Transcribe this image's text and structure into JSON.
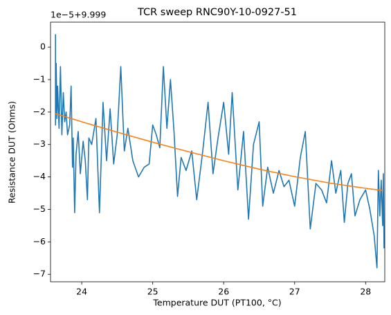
{
  "chart_data": {
    "type": "line",
    "title": "TCR sweep RNC90Y-10-0927-51",
    "x_label": "Temperature DUT (PT100, °C)",
    "y_label": "Resistance DUT (Ohms)",
    "y_offset_label": "1e−5+9.999",
    "xlim": [
      23.56,
      28.27
    ],
    "ylim": [
      -7.23,
      0.77
    ],
    "xticks": [
      24,
      25,
      26,
      27,
      28
    ],
    "yticks": [
      0,
      {
        "value": -1,
        "label": "−1"
      },
      {
        "value": -2,
        "label": "−2"
      },
      {
        "value": -3,
        "label": "−3"
      },
      {
        "value": -4,
        "label": "−4"
      },
      {
        "value": -5,
        "label": "−5"
      },
      {
        "value": -6,
        "label": "−6"
      },
      {
        "value": -7,
        "label": "−7"
      }
    ],
    "grid": false,
    "series": [
      {
        "color": "#1f77b4",
        "x": [
          23.63,
          23.63,
          23.64,
          23.65,
          23.66,
          23.68,
          23.7,
          23.72,
          23.74,
          23.76,
          23.78,
          23.8,
          23.83,
          23.85,
          23.87,
          23.88,
          23.9,
          23.92,
          23.95,
          23.98,
          24.02,
          24.05,
          24.08,
          24.1,
          24.14,
          24.2,
          24.25,
          24.3,
          24.35,
          24.4,
          24.45,
          24.5,
          24.55,
          24.6,
          24.65,
          24.72,
          24.8,
          24.88,
          24.95,
          25.0,
          25.05,
          25.1,
          25.15,
          25.2,
          25.25,
          25.3,
          25.35,
          25.4,
          25.47,
          25.55,
          25.62,
          25.7,
          25.78,
          25.85,
          25.92,
          26.0,
          26.07,
          26.12,
          26.2,
          26.28,
          26.35,
          26.42,
          26.5,
          26.55,
          26.62,
          26.7,
          26.78,
          26.85,
          26.92,
          27.0,
          27.08,
          27.15,
          27.22,
          27.3,
          27.38,
          27.45,
          27.52,
          27.58,
          27.65,
          27.7,
          27.75,
          27.8,
          27.85,
          27.92,
          28.0,
          28.06,
          28.12,
          28.16,
          28.18,
          28.2,
          28.22,
          28.24,
          28.25,
          28.26
        ],
        "values": [
          0.4,
          -2.4,
          -0.5,
          -2.2,
          -1.2,
          -2.5,
          -0.6,
          -2.7,
          -1.4,
          -2.3,
          -2.0,
          -2.7,
          -2.4,
          -1.2,
          -3.7,
          -2.8,
          -5.1,
          -3.3,
          -2.6,
          -3.9,
          -2.9,
          -3.5,
          -4.7,
          -2.8,
          -3.0,
          -2.2,
          -5.1,
          -1.7,
          -3.5,
          -1.9,
          -3.6,
          -2.7,
          -0.6,
          -3.2,
          -2.5,
          -3.5,
          -4.0,
          -3.7,
          -3.6,
          -2.4,
          -2.7,
          -3.1,
          -0.6,
          -2.5,
          -1.0,
          -2.6,
          -4.6,
          -3.4,
          -3.8,
          -3.2,
          -4.7,
          -3.3,
          -1.7,
          -3.9,
          -2.8,
          -1.7,
          -3.3,
          -1.4,
          -4.4,
          -2.6,
          -5.3,
          -3.0,
          -2.3,
          -4.9,
          -3.7,
          -4.5,
          -3.8,
          -4.3,
          -4.1,
          -4.9,
          -3.4,
          -2.6,
          -5.6,
          -4.2,
          -4.4,
          -4.8,
          -3.5,
          -4.5,
          -3.8,
          -5.4,
          -4.2,
          -3.9,
          -5.2,
          -4.7,
          -4.4,
          -5.0,
          -5.8,
          -6.8,
          -3.8,
          -5.2,
          -4.1,
          -5.5,
          -3.9,
          -6.2
        ]
      },
      {
        "color": "#ff7f0e",
        "x": [
          23.63,
          24.0,
          24.5,
          25.0,
          25.5,
          26.0,
          26.5,
          27.0,
          27.5,
          28.0,
          28.25
        ],
        "values": [
          -2.05,
          -2.3,
          -2.62,
          -2.93,
          -3.22,
          -3.5,
          -3.76,
          -3.99,
          -4.19,
          -4.35,
          -4.42
        ]
      }
    ]
  }
}
